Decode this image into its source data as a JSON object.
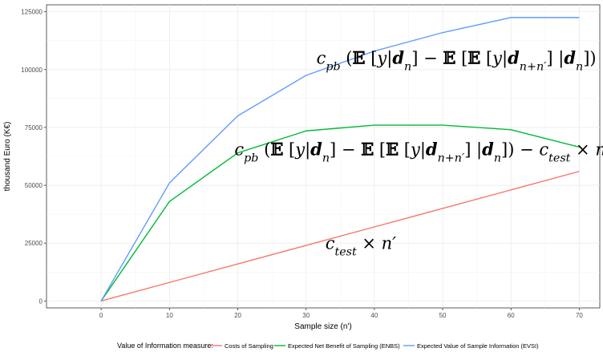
{
  "chart_data": {
    "type": "line",
    "xlabel": "Sample size (n')",
    "ylabel": "thousand Euro (K€)",
    "xlim": [
      -8,
      73
    ],
    "ylim": [
      -3000,
      128000
    ],
    "xticks": [
      0,
      10,
      20,
      30,
      40,
      50,
      60,
      70
    ],
    "yticks": [
      0,
      25000,
      50000,
      75000,
      100000,
      125000
    ],
    "grid": true,
    "legend_title": "Value of Information measure:",
    "legend_position": "bottom",
    "x": [
      0,
      10,
      20,
      30,
      40,
      50,
      60,
      70
    ],
    "series": [
      {
        "name": "Costs of Sampling",
        "color": "#f8766d",
        "values": [
          0,
          8000,
          16000,
          24000,
          32000,
          40000,
          48000,
          56000
        ]
      },
      {
        "name": "Expected Net Benefit of Sampling (ENBS)",
        "color": "#00ba38",
        "values": [
          0,
          43000,
          64000,
          73500,
          76000,
          76000,
          74000,
          66500
        ]
      },
      {
        "name": "Expected Value of Sample Information (EVSI)",
        "color": "#619cff",
        "values": [
          0,
          51000,
          80000,
          97500,
          108000,
          116000,
          122500,
          122500
        ]
      }
    ],
    "annotations": [
      {
        "id": "evsi",
        "x": 52,
        "y": 102500,
        "size": 21
      },
      {
        "id": "enbs",
        "x": 47,
        "y": 63000,
        "size": 21
      },
      {
        "id": "cost",
        "x": 38,
        "y": 22500,
        "size": 21
      }
    ]
  }
}
